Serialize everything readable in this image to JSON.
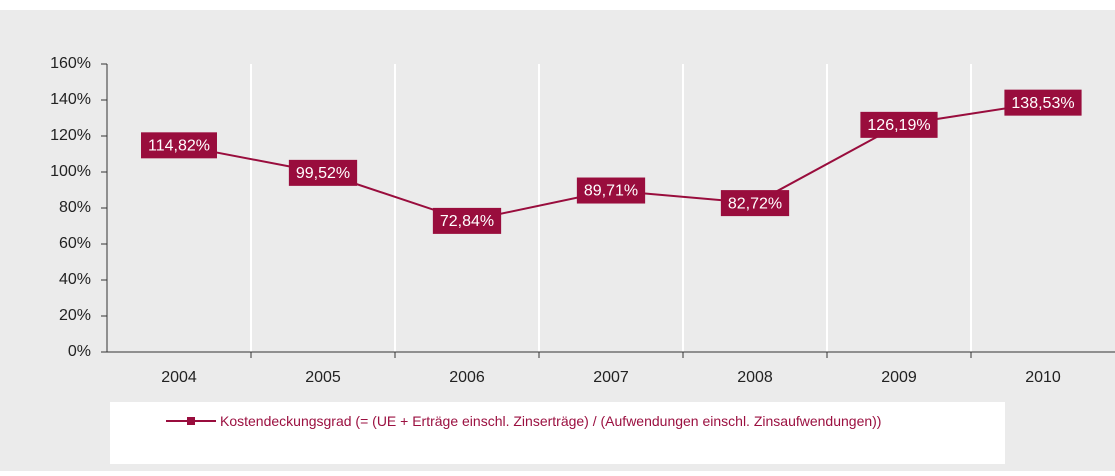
{
  "chart_data": {
    "type": "line",
    "categories": [
      "2004",
      "2005",
      "2006",
      "2007",
      "2008",
      "2009",
      "2010"
    ],
    "series": [
      {
        "name": "Kostendeckungsgrad (= (UE + Erträge einschl. Zinserträge) / (Aufwendungen einschl. Zinsaufwendungen))",
        "color": "#990d3d",
        "values": [
          114.82,
          99.52,
          72.84,
          89.71,
          82.72,
          126.19,
          138.53
        ],
        "value_labels": [
          "114,82%",
          "99,52%",
          "72,84%",
          "89,71%",
          "82,72%",
          "126,19%",
          "138,53%"
        ]
      }
    ],
    "ylim": [
      0,
      160
    ],
    "yticks": [
      {
        "value": 0,
        "label": "0%"
      },
      {
        "value": 20,
        "label": "20%"
      },
      {
        "value": 40,
        "label": "40%"
      },
      {
        "value": 60,
        "label": "60%"
      },
      {
        "value": 80,
        "label": "80%"
      },
      {
        "value": 100,
        "label": "100%"
      },
      {
        "value": 120,
        "label": "120%"
      },
      {
        "value": 140,
        "label": "140%"
      },
      {
        "value": 160,
        "label": "160%"
      }
    ],
    "legend": "bottom"
  }
}
